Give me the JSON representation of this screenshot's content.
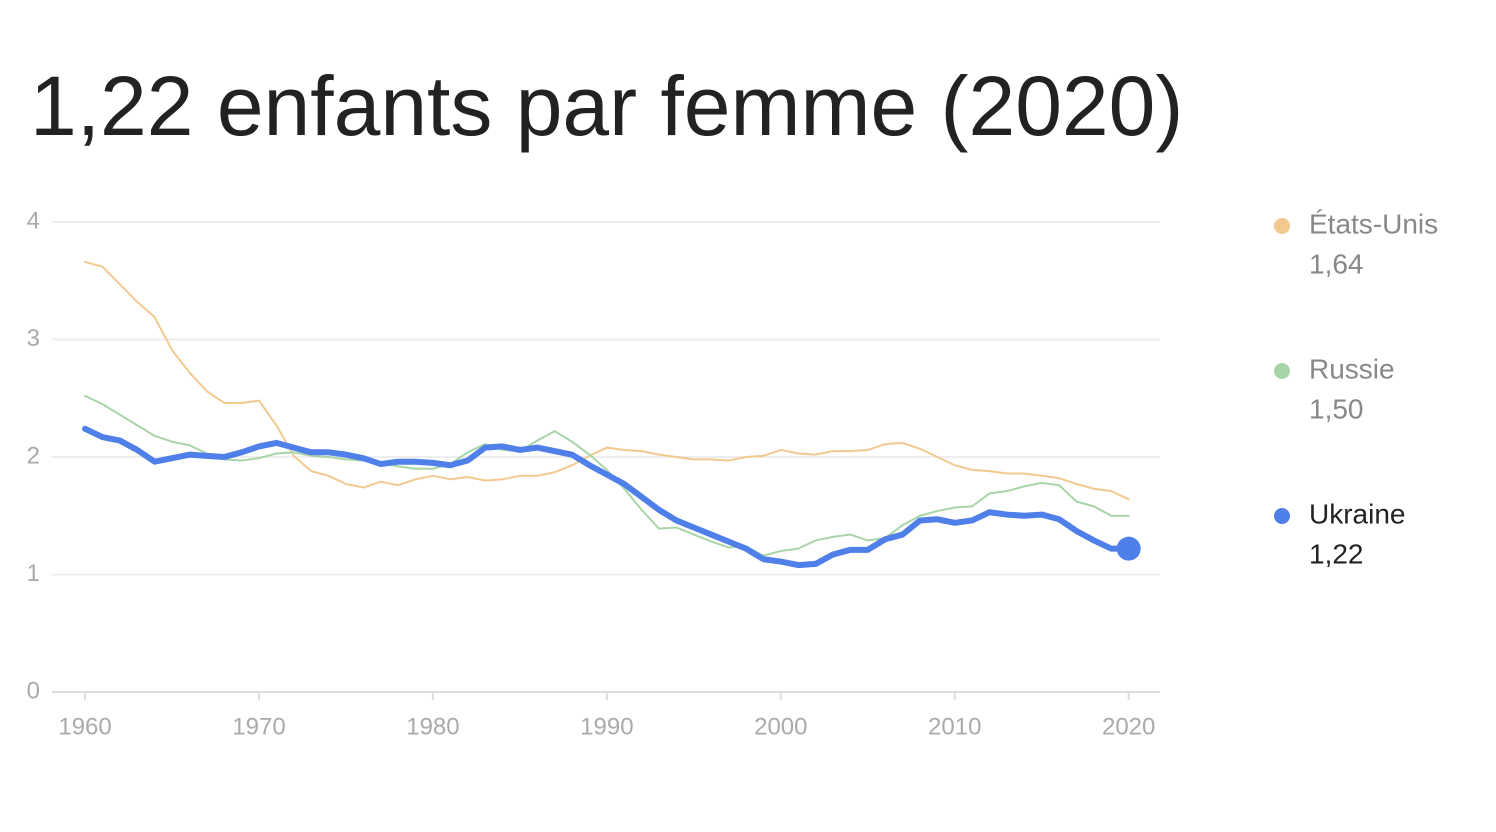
{
  "chart_data": {
    "type": "line",
    "title": "1,22 enfants par femme (2020)",
    "x": [
      1960,
      1961,
      1962,
      1963,
      1964,
      1965,
      1966,
      1967,
      1968,
      1969,
      1970,
      1971,
      1972,
      1973,
      1974,
      1975,
      1976,
      1977,
      1978,
      1979,
      1980,
      1981,
      1982,
      1983,
      1984,
      1985,
      1986,
      1987,
      1988,
      1989,
      1990,
      1991,
      1992,
      1993,
      1994,
      1995,
      1996,
      1997,
      1998,
      1999,
      2000,
      2001,
      2002,
      2003,
      2004,
      2005,
      2006,
      2007,
      2008,
      2009,
      2010,
      2011,
      2012,
      2013,
      2014,
      2015,
      2016,
      2017,
      2018,
      2019,
      2020
    ],
    "xlim": [
      1958.1,
      2021.8
    ],
    "xticks": [
      1960,
      1970,
      1980,
      1990,
      2000,
      2010,
      2020
    ],
    "ylim": [
      0,
      4
    ],
    "yticks": [
      0,
      1,
      2,
      3,
      4
    ],
    "grid": true,
    "legend": "right",
    "series": [
      {
        "name": "États-Unis",
        "color": "#f2c98e",
        "end_label": "1,64",
        "values": [
          3.66,
          3.62,
          3.47,
          3.32,
          3.19,
          2.91,
          2.72,
          2.56,
          2.46,
          2.46,
          2.48,
          2.27,
          2.01,
          1.88,
          1.84,
          1.77,
          1.74,
          1.79,
          1.76,
          1.81,
          1.84,
          1.81,
          1.83,
          1.8,
          1.81,
          1.84,
          1.84,
          1.87,
          1.93,
          2.01,
          2.08,
          2.06,
          2.05,
          2.02,
          2.0,
          1.98,
          1.98,
          1.97,
          2.0,
          2.01,
          2.06,
          2.03,
          2.02,
          2.05,
          2.05,
          2.06,
          2.11,
          2.12,
          2.07,
          2.0,
          1.93,
          1.89,
          1.88,
          1.86,
          1.86,
          1.84,
          1.82,
          1.77,
          1.73,
          1.71,
          1.64
        ]
      },
      {
        "name": "Russie",
        "color": "#a8d5a8",
        "end_label": "1,50",
        "values": [
          2.52,
          2.45,
          2.36,
          2.27,
          2.18,
          2.13,
          2.1,
          2.03,
          1.98,
          1.97,
          1.99,
          2.03,
          2.04,
          2.01,
          2.0,
          1.98,
          1.97,
          1.95,
          1.92,
          1.9,
          1.9,
          1.94,
          2.04,
          2.11,
          2.06,
          2.05,
          2.14,
          2.22,
          2.13,
          2.02,
          1.89,
          1.73,
          1.55,
          1.39,
          1.4,
          1.34,
          1.28,
          1.23,
          1.24,
          1.16,
          1.2,
          1.22,
          1.29,
          1.32,
          1.34,
          1.29,
          1.31,
          1.42,
          1.5,
          1.54,
          1.57,
          1.58,
          1.69,
          1.71,
          1.75,
          1.78,
          1.76,
          1.62,
          1.58,
          1.5,
          1.5
        ]
      },
      {
        "name": "Ukraine",
        "color": "#4f7fe8",
        "end_label": "1,22",
        "highlight": true,
        "values": [
          2.24,
          2.17,
          2.14,
          2.06,
          1.96,
          1.99,
          2.02,
          2.01,
          2.0,
          2.04,
          2.09,
          2.12,
          2.08,
          2.04,
          2.04,
          2.02,
          1.99,
          1.94,
          1.96,
          1.96,
          1.95,
          1.93,
          1.97,
          2.08,
          2.09,
          2.06,
          2.08,
          2.05,
          2.02,
          1.93,
          1.85,
          1.77,
          1.66,
          1.55,
          1.46,
          1.4,
          1.34,
          1.28,
          1.22,
          1.13,
          1.11,
          1.08,
          1.09,
          1.17,
          1.21,
          1.21,
          1.3,
          1.34,
          1.46,
          1.47,
          1.44,
          1.46,
          1.53,
          1.51,
          1.5,
          1.51,
          1.47,
          1.37,
          1.29,
          1.22,
          1.22
        ]
      }
    ]
  }
}
